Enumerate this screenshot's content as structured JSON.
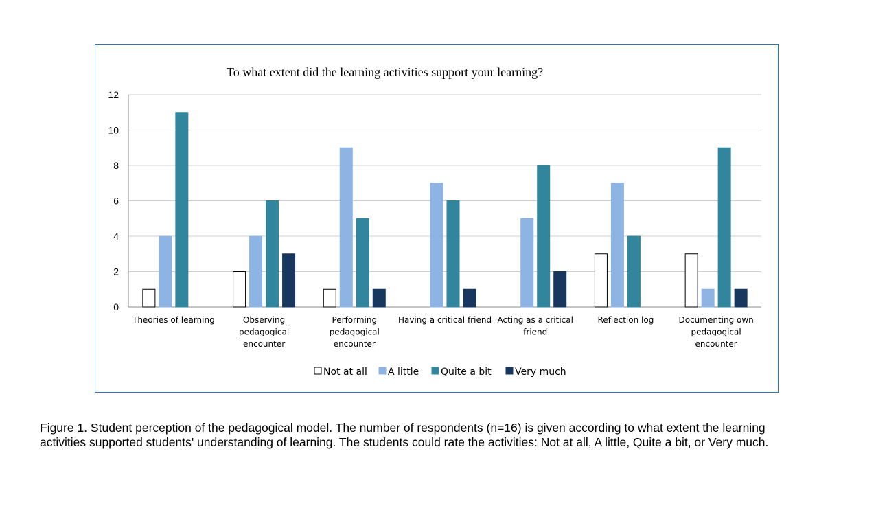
{
  "chart_data": {
    "type": "bar",
    "title": "To what extent did the learning activities support your learning?",
    "categories": [
      [
        "Theories of learning"
      ],
      [
        "Observing",
        "pedagogical",
        "encounter"
      ],
      [
        "Performing",
        "pedagogical",
        "encounter"
      ],
      [
        "Having a critical friend"
      ],
      [
        "Acting as a critical",
        "friend"
      ],
      [
        "Reflection log"
      ],
      [
        "Documenting own",
        "pedagogical",
        "encounter"
      ]
    ],
    "series": [
      {
        "name": "Not at all",
        "color": "#ffffff",
        "stroke": "#000000",
        "values": [
          1,
          2,
          1,
          0,
          0,
          3,
          3
        ]
      },
      {
        "name": "A little",
        "color": "#8eb4e3",
        "stroke": "#8eb4e3",
        "values": [
          4,
          4,
          9,
          7,
          5,
          7,
          1
        ]
      },
      {
        "name": "Quite a bit",
        "color": "#31859c",
        "stroke": "#31859c",
        "values": [
          11,
          6,
          5,
          6,
          8,
          4,
          9
        ]
      },
      {
        "name": "Very much",
        "color": "#17375e",
        "stroke": "#17375e",
        "values": [
          0,
          3,
          1,
          1,
          2,
          0,
          1
        ]
      }
    ],
    "ylim": [
      0,
      12
    ],
    "yticks": [
      0,
      2,
      4,
      6,
      8,
      10,
      12
    ],
    "grid": true,
    "legend_position": "bottom"
  },
  "caption": "Figure 1. Student perception of the pedagogical model. The number of respondents (n=16) is given according to what extent the learning\nactivities supported students' understanding of learning. The students could rate the activities: Not at all, A little, Quite a bit, or Very much."
}
